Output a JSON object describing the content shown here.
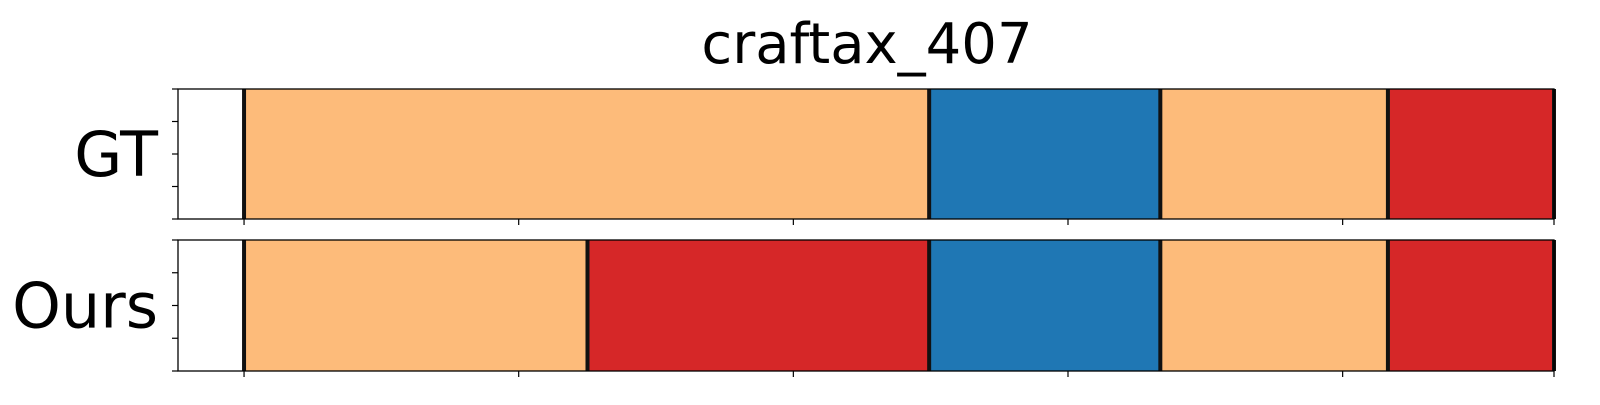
{
  "chart_data": {
    "type": "bar",
    "title": "craftax_407",
    "x_range": [
      0,
      1
    ],
    "colors": {
      "orange": "#fdbb7a",
      "blue": "#1f77b4",
      "red": "#d62728",
      "boundary": "#111111",
      "frame": "#000000"
    },
    "rows": [
      {
        "label": "GT",
        "boundaries": [
          0.048,
          0.5459,
          0.7139,
          0.8793,
          1.0
        ],
        "segments": [
          {
            "start": 0.048,
            "end": 0.5459,
            "color": "orange"
          },
          {
            "start": 0.5459,
            "end": 0.7139,
            "color": "blue"
          },
          {
            "start": 0.7139,
            "end": 0.8793,
            "color": "orange"
          },
          {
            "start": 0.8793,
            "end": 1.0,
            "color": "red"
          }
        ]
      },
      {
        "label": "Ours",
        "boundaries": [
          0.048,
          0.2976,
          0.5459,
          0.7139,
          0.8793,
          1.0
        ],
        "segments": [
          {
            "start": 0.048,
            "end": 0.2976,
            "color": "orange"
          },
          {
            "start": 0.2976,
            "end": 0.5459,
            "color": "red"
          },
          {
            "start": 0.5459,
            "end": 0.7139,
            "color": "blue"
          },
          {
            "start": 0.7139,
            "end": 0.8793,
            "color": "orange"
          },
          {
            "start": 0.8793,
            "end": 1.0,
            "color": "red"
          }
        ]
      }
    ],
    "x_ticks": [
      0.048,
      0.2476,
      0.4472,
      0.6468,
      0.8464,
      1.0
    ],
    "y_ticks_per_panel": 5,
    "grid": false,
    "legend": "none"
  }
}
